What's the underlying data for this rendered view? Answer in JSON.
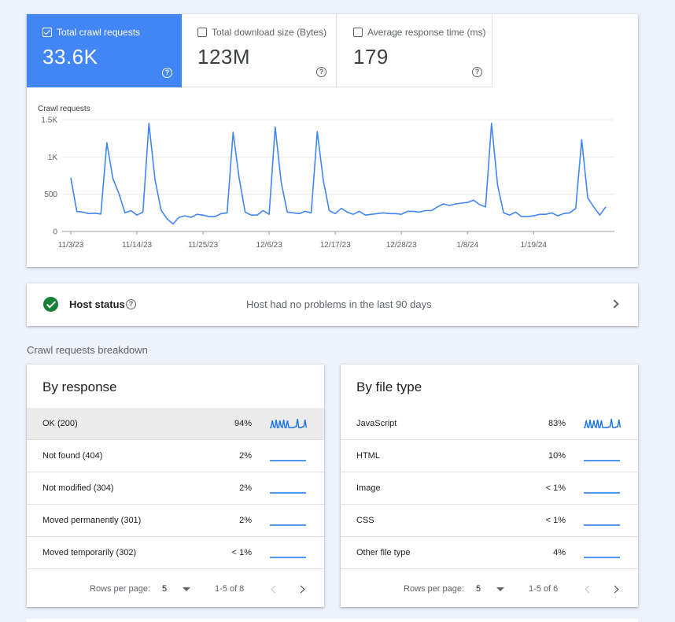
{
  "metrics": [
    {
      "label": "Total crawl requests",
      "value": "33.6K",
      "checked": true
    },
    {
      "label": "Total download size (Bytes)",
      "value": "123M",
      "checked": false
    },
    {
      "label": "Average response time (ms)",
      "value": "179",
      "checked": false
    }
  ],
  "help_glyph": "?",
  "chart_data": {
    "type": "line",
    "title": "",
    "ylabel": "Crawl requests",
    "xlabel": "",
    "ylim": [
      0,
      1500
    ],
    "yticks": [
      0,
      500,
      1000,
      1500
    ],
    "ytick_labels": [
      "0",
      "500",
      "1K",
      "1.5K"
    ],
    "xtick_labels": [
      "11/3/23",
      "11/14/23",
      "11/25/23",
      "12/6/23",
      "12/17/23",
      "12/28/23",
      "1/8/24",
      "1/19/24"
    ],
    "x_start": "2023-11-03",
    "x_end": "2024-01-30",
    "grid": true,
    "color": "#4285f4",
    "series": [
      {
        "values": [
          720,
          270,
          260,
          240,
          245,
          235,
          1190,
          710,
          510,
          250,
          280,
          220,
          260,
          1450,
          700,
          290,
          170,
          100,
          190,
          210,
          190,
          230,
          220,
          200,
          200,
          240,
          250,
          1330,
          720,
          260,
          220,
          220,
          280,
          230,
          1400,
          660,
          260,
          250,
          240,
          270,
          250,
          1340,
          690,
          280,
          240,
          310,
          260,
          230,
          270,
          220,
          230,
          240,
          250,
          240,
          240,
          230,
          270,
          270,
          260,
          280,
          280,
          330,
          370,
          350,
          370,
          380,
          390,
          420,
          360,
          330,
          1450,
          620,
          250,
          220,
          260,
          200,
          200,
          210,
          230,
          230,
          250,
          210,
          240,
          250,
          310,
          1230,
          450,
          330,
          220,
          330
        ]
      }
    ]
  },
  "host_status": {
    "label": "Host status",
    "message": "Host had no problems in the last 90 days",
    "icon": "check-circle-icon"
  },
  "breakdown_title": "Crawl requests breakdown",
  "by_response": {
    "title": "By response",
    "rows": [
      {
        "label": "OK (200)",
        "pct": "94%",
        "spark": "spiky",
        "selected": true
      },
      {
        "label": "Not found (404)",
        "pct": "2%",
        "spark": "flat"
      },
      {
        "label": "Not modified (304)",
        "pct": "2%",
        "spark": "flat"
      },
      {
        "label": "Moved permanently (301)",
        "pct": "2%",
        "spark": "flat"
      },
      {
        "label": "Moved temporarily (302)",
        "pct": "< 1%",
        "spark": "flat"
      }
    ],
    "rows_per_page_label": "Rows per page:",
    "rows_per_page": "5",
    "range": "1-5 of 8"
  },
  "by_file_type": {
    "title": "By file type",
    "rows": [
      {
        "label": "JavaScript",
        "pct": "83%",
        "spark": "spiky"
      },
      {
        "label": "HTML",
        "pct": "10%",
        "spark": "flat"
      },
      {
        "label": "Image",
        "pct": "< 1%",
        "spark": "flat"
      },
      {
        "label": "CSS",
        "pct": "< 1%",
        "spark": "flat"
      },
      {
        "label": "Other file type",
        "pct": "4%",
        "spark": "flat"
      }
    ],
    "rows_per_page_label": "Rows per page:",
    "rows_per_page": "5",
    "range": "1-5 of 6"
  }
}
